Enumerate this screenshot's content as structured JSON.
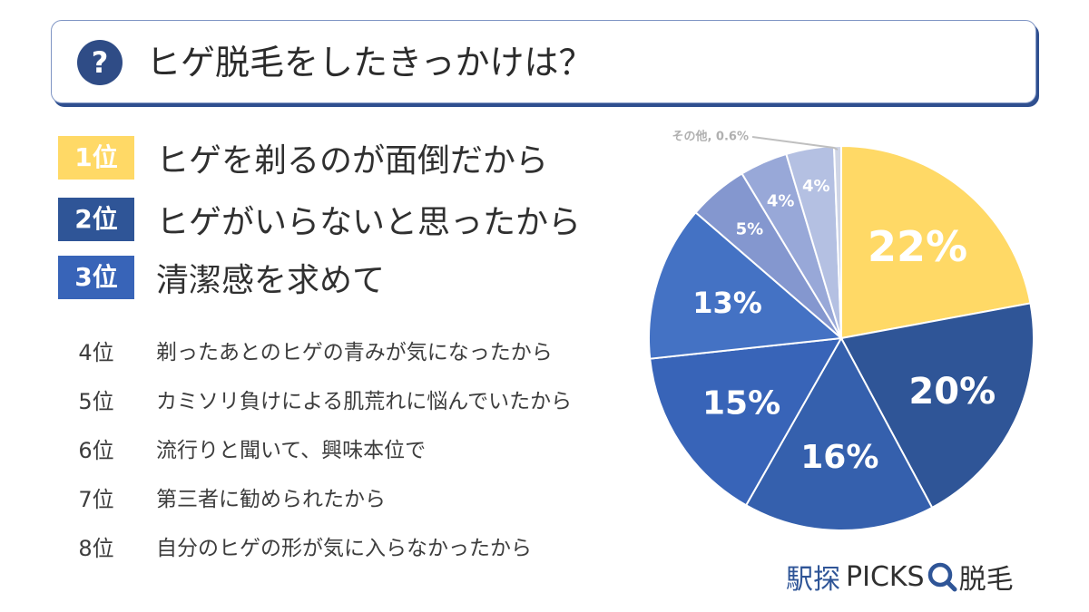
{
  "header": {
    "icon": "question-icon",
    "icon_glyph": "?",
    "title": "ヒゲ脱毛をしたきっかけは？"
  },
  "ranking": {
    "top": [
      {
        "rank": "1位",
        "text": "ヒゲを剃るのが面倒だから",
        "color": "#ffd966"
      },
      {
        "rank": "2位",
        "text": "ヒゲがいらないと思ったから",
        "color": "#2f5597"
      },
      {
        "rank": "3位",
        "text": "清潔感を求めて",
        "color": "#3864b8"
      }
    ],
    "others": [
      {
        "rank": "4位",
        "text": "剃ったあとのヒゲの青みが気になったから"
      },
      {
        "rank": "5位",
        "text": "カミソリ負けによる肌荒れに悩んでいたから"
      },
      {
        "rank": "6位",
        "text": "流行りと聞いて、興味本位で"
      },
      {
        "rank": "7位",
        "text": "第三者に勧められたから"
      },
      {
        "rank": "8位",
        "text": "自分のヒゲの形が気に入らなかったから"
      }
    ]
  },
  "chart_data": {
    "type": "pie",
    "title": "",
    "slices": [
      {
        "label": "22%",
        "value": 22.0,
        "color": "#ffd966"
      },
      {
        "label": "20%",
        "value": 20.0,
        "color": "#2f5597"
      },
      {
        "label": "16%",
        "value": 16.0,
        "color": "#3560ad"
      },
      {
        "label": "15%",
        "value": 15.0,
        "color": "#3864b8"
      },
      {
        "label": "13%",
        "value": 13.0,
        "color": "#4472c4"
      },
      {
        "label": "5%",
        "value": 5.0,
        "color": "#8497cf"
      },
      {
        "label": "4%",
        "value": 4.0,
        "color": "#98a8d8"
      },
      {
        "label": "4%",
        "value": 4.0,
        "color": "#b4c0e2"
      },
      {
        "label": "その他, 0.6%",
        "value": 0.6,
        "color": "#cfd5e6"
      }
    ],
    "start": "top",
    "direction": "clockwise"
  },
  "brand": {
    "part1": "駅探",
    "part2": "PICKS",
    "part3": "脱毛",
    "icon": "magnifier-icon",
    "color1": "#2f5597",
    "color2": "#303030"
  }
}
